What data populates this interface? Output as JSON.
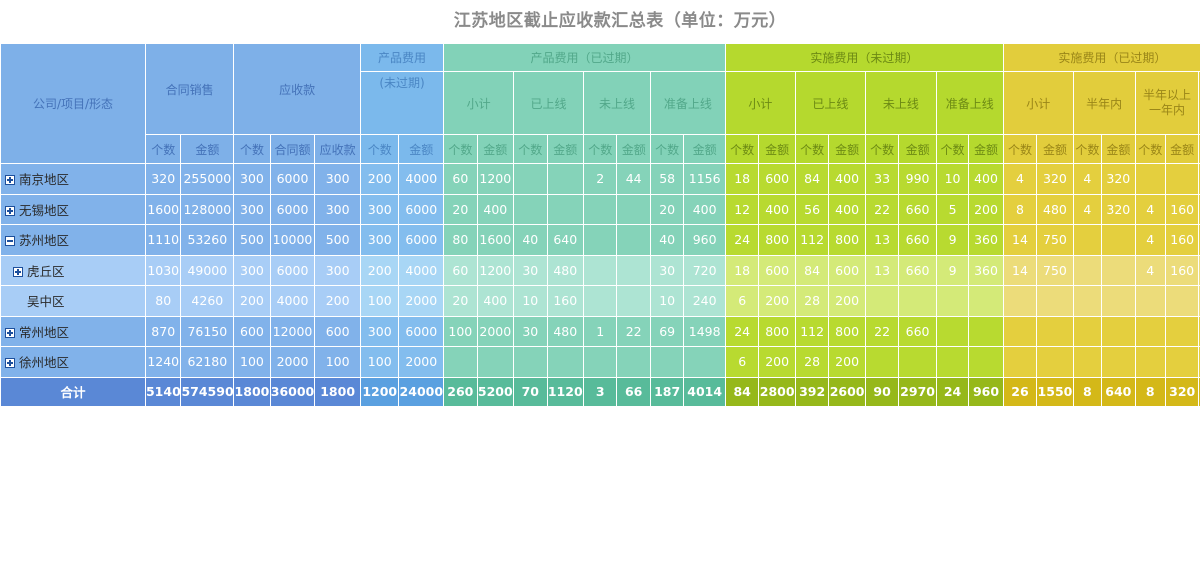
{
  "title": "江苏地区截止应收款汇总表（单位：万元）",
  "headers": {
    "company": "公司/项目/形态",
    "contract_sales": "合同销售",
    "receivable": "应收款",
    "product_fee_line1": "产品费用",
    "product_fee_line2": "(未过期)",
    "product_fee_expired": "产品费用（已过期）",
    "impl_not_expired": "实施费用（未过期）",
    "impl_expired": "实施费用（已过期）",
    "subtotal": "小计",
    "online": "已上线",
    "not_online": "未上线",
    "prep_online": "准备上线",
    "half_year": "半年内",
    "half_to_year_1": "半年以上",
    "half_to_year_2": "一年内",
    "count": "个数",
    "amount": "金额",
    "contract_amount": "合同额",
    "receivable_amount": "应收款",
    "cut_col": "个"
  },
  "rows": [
    {
      "name": "南京地区",
      "expand": "plus",
      "level": 0,
      "light": false,
      "v": [
        "320",
        "255000",
        "300",
        "6000",
        "300",
        "200",
        "4000",
        "60",
        "1200",
        "",
        "",
        "2",
        "44",
        "58",
        "1156",
        "18",
        "600",
        "84",
        "400",
        "33",
        "990",
        "10",
        "400",
        "4",
        "320",
        "4",
        "320",
        "",
        "",
        ""
      ]
    },
    {
      "name": "无锡地区",
      "expand": "plus",
      "level": 0,
      "light": false,
      "v": [
        "1600",
        "128000",
        "300",
        "6000",
        "300",
        "300",
        "6000",
        "20",
        "400",
        "",
        "",
        "",
        "",
        "20",
        "400",
        "12",
        "400",
        "56",
        "400",
        "22",
        "660",
        "5",
        "200",
        "8",
        "480",
        "4",
        "320",
        "4",
        "160",
        ""
      ]
    },
    {
      "name": "苏州地区",
      "expand": "minus",
      "level": 0,
      "light": false,
      "v": [
        "1110",
        "53260",
        "500",
        "10000",
        "500",
        "300",
        "6000",
        "80",
        "1600",
        "40",
        "640",
        "",
        "",
        "40",
        "960",
        "24",
        "800",
        "112",
        "800",
        "13",
        "660",
        "9",
        "360",
        "14",
        "750",
        "",
        "",
        "4",
        "160",
        ""
      ]
    },
    {
      "name": "虎丘区",
      "expand": "plus",
      "level": 1,
      "light": true,
      "v": [
        "1030",
        "49000",
        "300",
        "6000",
        "300",
        "200",
        "4000",
        "60",
        "1200",
        "30",
        "480",
        "",
        "",
        "30",
        "720",
        "18",
        "600",
        "84",
        "600",
        "13",
        "660",
        "9",
        "360",
        "14",
        "750",
        "",
        "",
        "4",
        "160",
        ""
      ]
    },
    {
      "name": "吴中区",
      "expand": "none",
      "level": 1,
      "light": true,
      "v": [
        "80",
        "4260",
        "200",
        "4000",
        "200",
        "100",
        "2000",
        "20",
        "400",
        "10",
        "160",
        "",
        "",
        "10",
        "240",
        "6",
        "200",
        "28",
        "200",
        "",
        "",
        "",
        "",
        "",
        "",
        "",
        "",
        "",
        "",
        ""
      ]
    },
    {
      "name": "常州地区",
      "expand": "plus",
      "level": 0,
      "light": false,
      "v": [
        "870",
        "76150",
        "600",
        "12000",
        "600",
        "300",
        "6000",
        "100",
        "2000",
        "30",
        "480",
        "1",
        "22",
        "69",
        "1498",
        "24",
        "800",
        "112",
        "800",
        "22",
        "660",
        "",
        "",
        "",
        "",
        "",
        "",
        "",
        "",
        ""
      ]
    },
    {
      "name": "徐州地区",
      "expand": "plus",
      "level": 0,
      "light": false,
      "v": [
        "1240",
        "62180",
        "100",
        "2000",
        "100",
        "100",
        "2000",
        "",
        "",
        "",
        "",
        "",
        "",
        "",
        "",
        "6",
        "200",
        "28",
        "200",
        "",
        "",
        "",
        "",
        "",
        "",
        "",
        "",
        "",
        "",
        ""
      ]
    }
  ],
  "total": {
    "name": "合计",
    "v": [
      "5140",
      "574590",
      "1800",
      "36000",
      "1800",
      "1200",
      "24000",
      "260",
      "5200",
      "70",
      "1120",
      "3",
      "66",
      "187",
      "4014",
      "84",
      "2800",
      "392",
      "2600",
      "90",
      "2970",
      "24",
      "960",
      "26",
      "1550",
      "8",
      "640",
      "8",
      "320",
      ""
    ]
  },
  "colors": {
    "blue_header": "#7eb0e8",
    "sky_header": "#7bb9ec",
    "teal_header": "#82d2b8",
    "lime_header": "#b5d92e",
    "yellow_header": "#e2cd3c"
  }
}
